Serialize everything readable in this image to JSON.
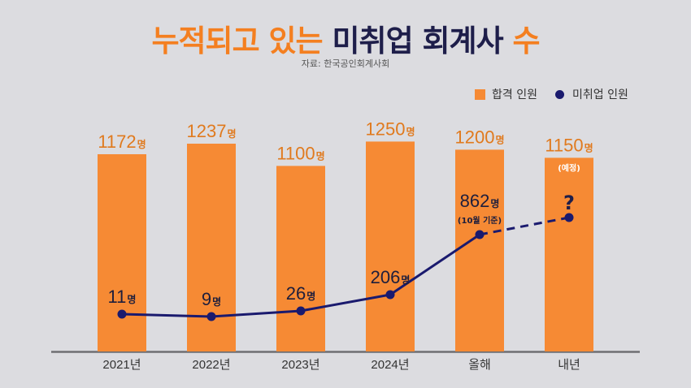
{
  "title": {
    "part1": "누적되고 있는 ",
    "part2": "미취업 회계사",
    "part3": " 수"
  },
  "source": "자료: 한국공인회계사회",
  "colors": {
    "bar": "#f68a34",
    "line": "#1a1a6e",
    "title_orange": "#f47f20",
    "title_navy": "#1e1e4a"
  },
  "legend": [
    {
      "label": "합격 인원",
      "marker": "square"
    },
    {
      "label": "미취업 인원",
      "marker": "circle"
    }
  ],
  "chart_data": {
    "type": "bar",
    "title": "누적되고 있는 미취업 회계사 수",
    "categories": [
      "2021년",
      "2022년",
      "2023년",
      "2024년",
      "올해",
      "내년"
    ],
    "unit": "명",
    "series": [
      {
        "name": "합격 인원",
        "type": "bar",
        "values": [
          1172,
          1237,
          1100,
          1250,
          1200,
          1150
        ],
        "annotations": [
          "",
          "",
          "",
          "",
          "",
          "(예정)"
        ]
      },
      {
        "name": "미취업 인원",
        "type": "line",
        "values": [
          11,
          9,
          26,
          206,
          862,
          null
        ],
        "annotations": [
          "",
          "",
          "",
          "",
          "(10월 기준)",
          "?"
        ],
        "projected_segment": [
          "올해",
          "내년"
        ]
      }
    ],
    "legend_position": "top-right",
    "grid": false,
    "xlabel": "",
    "ylabel": ""
  }
}
